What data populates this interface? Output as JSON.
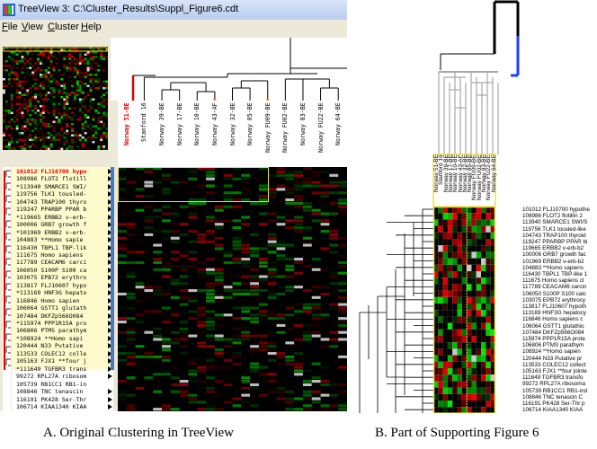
{
  "panel_a": {
    "window_title": "TreeView 3: C:\\Cluster_Results\\Suppl_Figure6.cdt",
    "menu": [
      "File",
      "View",
      "Cluster",
      "Help"
    ],
    "arrays": [
      "Norway 51-BE",
      "Stanford 16",
      "Norway 39-BE",
      "Norway 17-BE",
      "Norway 10-BE",
      "Norway 43-AF",
      "Norway 32-BE",
      "Norway 85-BE",
      "Norway FU09-BE",
      "Norway FU02-BE",
      "Norway 83-BE",
      "Norway FU22-BE",
      "Norway 64-BE"
    ],
    "genes": [
      "101012 FLJ10700 hypo",
      "108986 FLOT2 flotill",
      "*113940 SMARCE1 SWI/",
      "119756 TLK1 tousled-",
      "104743 TRAP100 thyro",
      "119247 PPARBP PPAR b",
      "*119665 ERBB2 v-erb-",
      "100006 GRB7 growth f",
      "*101969 ERBB2 v-erb-",
      "104883 **Homo sapie",
      "116430 TBPL1 TBP-lik",
      "111675  Homo sapiens",
      "117789 CEACAM6 carci",
      "106050 S100P S100 ca",
      "103075 EPB72 erythro",
      "113817 FLJ10607 hypo",
      "*113169 HNF3G hepato",
      "116846  Homo sapien",
      "106064 GSTT1 glutath",
      "107484 DKFZp566O084",
      "*115974 PPP1R15A pro",
      "106806 PTMS parathym",
      "*108924  **Homo sapi",
      "120444 N33 Putative",
      "113533 COLEC12 colle",
      "105163 FJX1 **four j",
      "*111649 TGFBR3 trans",
      "99272 RPL27A ribosom",
      "105739 RB1CC1 RB1-in",
      "108846 TNC tenascin",
      "116191 PK428 Ser-Thr",
      "106714 KIAA1340 KIAA"
    ],
    "caption": "A. Original Clustering in TreeView"
  },
  "panel_b": {
    "arrays": [
      "Norway 51-BE",
      "Stanford 16",
      "Norway 39-BE",
      "Norway 17-BE",
      "Norway 10-BE",
      "Norway 43-AF",
      "Norway 32-BE",
      "Norway 85-BE",
      "Norway FU09-BE",
      "Norway FU02-BE",
      "Norway 83-BE",
      "Norway FU22-BE",
      "Norway 64-BE"
    ],
    "genes": [
      "101012 FLJ10700 hypothe",
      "108986 FLOT2 flotillin 2",
      "113940 SMARCE1 SWI/S",
      "119756 TLK1 tousled-like",
      "104743 TRAP100 thyroid",
      "119247 PPARBP PPAR bi",
      "119665 ERBB2 v-erb-b2",
      "100006 GRB7 growth fac",
      "101969 ERBB2 v-erb-b2",
      "104883 **Homo sapiens",
      "116430 TBPL1 TBP-like 1",
      "111675  Homo sapiens cl",
      "117789 CEACAM6 carcin",
      "106050 S100P S100 calc",
      "103075 EPB72 erythrocy",
      "113817 FLJ10607 hypoth",
      "113169 HNF3G hepatocy",
      "116846  Homo sapiens c",
      "106064 GSTT1 glutathio",
      "107484 DKFZp566O084",
      "115974 PPP1R15A prote",
      "106806 PTMS parathym",
      "108924 **Homo sapien",
      "120444 N33 Putative pr",
      "113533 COLEC12 collect",
      "105163 FJX1 **four jointe",
      "111649 TGFBR3 transfo",
      "99272 RPL27A ribosoma",
      "105739 RB1CC1 RB1-ind",
      "108846 TNC tenascin C",
      "116191 PK428 Ser-Thr p",
      "106714 KIAA1340 KIAA"
    ],
    "caption": "B. Part of Supporting Figure 6"
  },
  "colors": {
    "selection_highlight": "#fffbcc",
    "highlight_border": "#e8e04a",
    "heat_red": "#ff0000",
    "heat_green": "#00ff00",
    "selected_gene_text": "#e00000",
    "tree_selected_red": "#e00000",
    "tree_selected_blue": "#1f3fff"
  },
  "icons": [
    "treeview-app-icon",
    "expand-arrow-icon"
  ]
}
